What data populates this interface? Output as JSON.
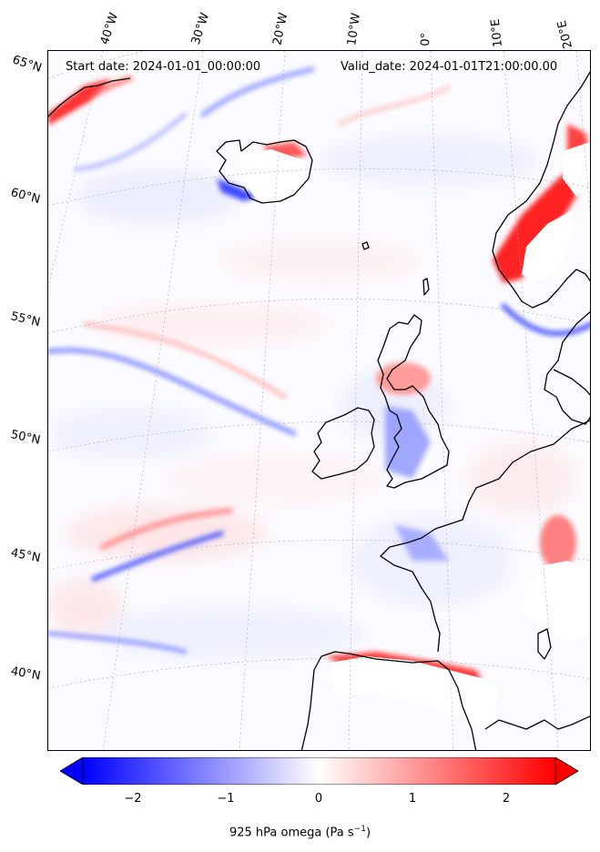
{
  "header": {
    "start_date": "Start date: 2024-01-01_00:00:00",
    "valid_date": "Valid_date: 2024-01-01T21:00:00.00"
  },
  "longitude_labels": [
    "40°W",
    "30°W",
    "20°W",
    "10°W",
    "0°",
    "10°E",
    "20°E"
  ],
  "latitude_labels": [
    "65°N",
    "60°N",
    "55°N",
    "50°N",
    "45°N",
    "40°N"
  ],
  "colorbar": {
    "title": "925 hPa omega (Pa s",
    "title_exponent": "−1",
    "title_close": ")",
    "tick_labels": [
      "−2",
      "−1",
      "0",
      "1",
      "2"
    ],
    "min_color": "#0000ff",
    "mid_color": "#ffffff",
    "max_color": "#ff0000"
  },
  "colors": {
    "coastline": "#000000",
    "gridline": "#aaaaaa",
    "positive_omega": "#ff0000",
    "negative_omega": "#0000ff"
  }
}
